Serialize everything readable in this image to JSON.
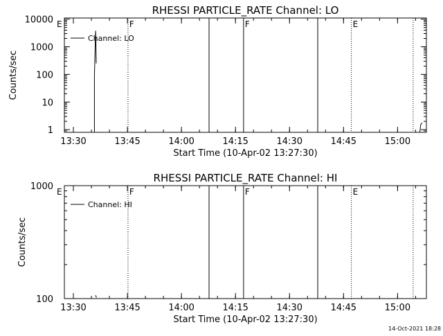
{
  "timestamp": "14-Oct-2021 18:28",
  "chart_data": [
    {
      "type": "line",
      "title": "RHESSI PARTICLE_RATE Channel: LO",
      "xlabel": "Start Time (10-Apr-02 13:27:30)",
      "ylabel": "Counts/sec",
      "yscale": "log",
      "xlim": [
        "13:27:30",
        "15:08:00"
      ],
      "ylim": [
        0.8,
        11000
      ],
      "xticks": [
        "13:30",
        "13:45",
        "14:00",
        "14:15",
        "14:30",
        "14:45",
        "15:00"
      ],
      "yticks": [
        {
          "value": 1,
          "label": "1"
        },
        {
          "value": 10,
          "label": "10"
        },
        {
          "value": 100,
          "label": "100"
        },
        {
          "value": 1000,
          "label": "1000"
        },
        {
          "value": 10000,
          "label": "10000"
        }
      ],
      "legend": {
        "label": "Channel: LO",
        "placement": "top-left"
      },
      "series": [
        {
          "name": "Channel: LO",
          "segments": [
            [
              [
                "13:35:50",
                0.8
              ],
              [
                "13:35:50",
                80
              ],
              [
                "13:36:05",
                1700
              ],
              [
                "13:36:10",
                3800
              ],
              [
                "13:36:15",
                2000
              ],
              [
                "13:36:20",
                250
              ]
            ],
            [
              [
                "15:06:10",
                0.8
              ],
              [
                "15:06:25",
                1.5
              ],
              [
                "15:06:45",
                1.8
              ]
            ]
          ]
        }
      ],
      "event_lines": [
        {
          "time": "13:45:10",
          "style": "dotted",
          "label": "F"
        },
        {
          "time": "14:07:40",
          "style": "solid",
          "label": ""
        },
        {
          "time": "14:17:15",
          "style": "solid",
          "label": "F"
        },
        {
          "time": "14:37:50",
          "style": "solid",
          "label": ""
        },
        {
          "time": "14:47:10",
          "style": "dotted",
          "label": "E"
        },
        {
          "time": "15:04:20",
          "style": "dotted",
          "label": ""
        }
      ],
      "edge_marker": {
        "time": "13:27:30",
        "label": "E"
      }
    },
    {
      "type": "line",
      "title": "RHESSI PARTICLE_RATE Channel: HI",
      "xlabel": "Start Time (10-Apr-02 13:27:30)",
      "ylabel": "Counts/sec",
      "yscale": "log",
      "xlim": [
        "13:27:30",
        "15:08:00"
      ],
      "ylim": [
        100,
        1000
      ],
      "xticks": [
        "13:30",
        "13:45",
        "14:00",
        "14:15",
        "14:30",
        "14:45",
        "15:00"
      ],
      "yticks": [
        {
          "value": 100,
          "label": "100"
        },
        {
          "value": 1000,
          "label": "1000"
        }
      ],
      "legend": {
        "label": "Channel: HI",
        "placement": "top-left"
      },
      "series": [
        {
          "name": "Channel: HI",
          "segments": [
            [
              [
                "13:36:10",
                107
              ],
              [
                "13:36:25",
                102
              ]
            ]
          ]
        }
      ],
      "event_lines": [
        {
          "time": "13:45:10",
          "style": "dotted",
          "label": "F"
        },
        {
          "time": "14:07:40",
          "style": "solid",
          "label": ""
        },
        {
          "time": "14:17:15",
          "style": "solid",
          "label": "F"
        },
        {
          "time": "14:37:50",
          "style": "solid",
          "label": ""
        },
        {
          "time": "14:47:10",
          "style": "dotted",
          "label": "E"
        },
        {
          "time": "15:04:20",
          "style": "dotted",
          "label": ""
        }
      ],
      "edge_marker": {
        "time": "13:27:30",
        "label": "E"
      }
    }
  ]
}
